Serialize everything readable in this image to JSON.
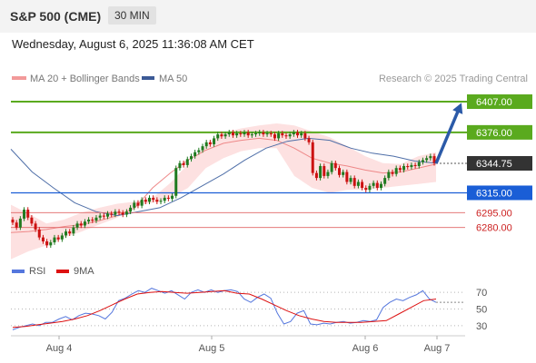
{
  "header": {
    "title": "S&P 500 (CME)",
    "timeframe": "30 MIN"
  },
  "datetime": "Wednesday, August 6, 2025 11:36:08 AM CET",
  "legend": {
    "bollinger": "MA 20 + Bollinger Bands",
    "ma50": "MA 50",
    "copyright": "Research © 2025 Trading Central",
    "rsi": "RSI",
    "rsi_ma": "9MA"
  },
  "colors": {
    "up_candle": "#1f7a1f",
    "down_candle": "#cc1111",
    "bollinger_fill": "#fde1e1",
    "ma20": "#ee8888",
    "ma50": "#4f6fa8",
    "resistance": "#5aaa1e",
    "pivot": "#1a5ed6",
    "support": "#e06666",
    "current": "#333333",
    "arrow": "#2b5aa8",
    "rsi": "#5577dd",
    "rsi_ma": "#dd1111"
  },
  "chart_data": [
    {
      "type": "candlestick",
      "title": "S&P 500 (CME) 30 MIN",
      "x_labels": [
        "Aug 4",
        "Aug 5",
        "Aug 6",
        "Aug 7"
      ],
      "ylim": [
        6255,
        6418
      ],
      "levels": [
        {
          "label": "6407.00",
          "value": 6407.0,
          "kind": "resistance"
        },
        {
          "label": "6376.00",
          "value": 6376.0,
          "kind": "resistance"
        },
        {
          "label": "6344.75",
          "value": 6344.75,
          "kind": "current"
        },
        {
          "label": "6315.00",
          "value": 6315.0,
          "kind": "pivot"
        },
        {
          "label": "6295.00",
          "value": 6295.0,
          "kind": "support"
        },
        {
          "label": "6280.00",
          "value": 6280.0,
          "kind": "support"
        }
      ],
      "forecast": {
        "from": 6344.75,
        "to": 6407.0,
        "direction": "up"
      },
      "closes": [
        6285,
        6280,
        6289,
        6298,
        6290,
        6284,
        6278,
        6270,
        6266,
        6262,
        6265,
        6270,
        6268,
        6272,
        6276,
        6274,
        6280,
        6284,
        6282,
        6286,
        6288,
        6287,
        6290,
        6292,
        6291,
        6294,
        6293,
        6296,
        6295,
        6293,
        6296,
        6300,
        6305,
        6302,
        6308,
        6306,
        6310,
        6308,
        6306,
        6307,
        6310,
        6309,
        6312,
        6340,
        6345,
        6343,
        6349,
        6352,
        6356,
        6358,
        6362,
        6366,
        6364,
        6370,
        6374,
        6372,
        6374,
        6376,
        6373,
        6375,
        6374,
        6376,
        6373,
        6374,
        6375,
        6376,
        6374,
        6375,
        6374,
        6370,
        6375,
        6373,
        6372,
        6374,
        6376,
        6373,
        6375,
        6370,
        6366,
        6335,
        6330,
        6342,
        6332,
        6336,
        6345,
        6340,
        6333,
        6336,
        6326,
        6330,
        6322,
        6326,
        6320,
        6318,
        6322,
        6325,
        6320,
        6324,
        6330,
        6336,
        6334,
        6340,
        6338,
        6342,
        6341,
        6343,
        6342,
        6346,
        6348,
        6350,
        6352,
        6345
      ],
      "ma20": [
        6275,
        6276,
        6278,
        6281,
        6283,
        6287,
        6292,
        6300,
        6320,
        6335,
        6348,
        6358,
        6365,
        6368,
        6370,
        6368,
        6360,
        6350,
        6345,
        6342,
        6338,
        6335,
        6336,
        6340,
        6344
      ],
      "bollinger_upper": [
        6303,
        6294,
        6284,
        6288,
        6295,
        6300,
        6304,
        6306,
        6310,
        6325,
        6344,
        6363,
        6376,
        6380,
        6383,
        6385,
        6383,
        6377,
        6371,
        6362,
        6352,
        6345,
        6344,
        6352,
        6356
      ],
      "bollinger_lower": [
        6248,
        6256,
        6262,
        6270,
        6276,
        6283,
        6290,
        6302,
        6305,
        6310,
        6320,
        6340,
        6350,
        6357,
        6360,
        6360,
        6332,
        6320,
        6315,
        6318,
        6318,
        6320,
        6322,
        6324,
        6326
      ],
      "ma50": [
        6359,
        6336,
        6320,
        6305,
        6296,
        6292,
        6296,
        6300,
        6310,
        6322,
        6334,
        6348,
        6360,
        6367,
        6370,
        6368,
        6360,
        6355,
        6352,
        6347,
        6345
      ]
    },
    {
      "type": "line",
      "title": "RSI",
      "ylim": [
        20,
        80
      ],
      "y_ticks": [
        70,
        50,
        30
      ],
      "series": [
        {
          "name": "RSI",
          "values": [
            25,
            28,
            30,
            32,
            30,
            34,
            34,
            38,
            41,
            37,
            42,
            45,
            44,
            42,
            38,
            46,
            60,
            63,
            68,
            72,
            70,
            75,
            72,
            69,
            72,
            67,
            62,
            70,
            73,
            70,
            73,
            70,
            72,
            73,
            71,
            62,
            58,
            64,
            68,
            63,
            45,
            32,
            35,
            45,
            48,
            32,
            31,
            33,
            32,
            34,
            35,
            33,
            34,
            36,
            35,
            37,
            52,
            58,
            62,
            60,
            64,
            67,
            72,
            62,
            58
          ]
        },
        {
          "name": "9MA",
          "values": [
            28,
            29,
            31,
            33,
            35,
            38,
            42,
            48,
            55,
            62,
            68,
            70,
            71,
            70,
            69,
            70,
            71,
            72,
            69,
            68,
            62,
            55,
            48,
            42,
            38,
            35,
            34,
            34,
            34,
            35,
            36,
            44,
            52,
            60,
            62
          ]
        }
      ]
    }
  ]
}
